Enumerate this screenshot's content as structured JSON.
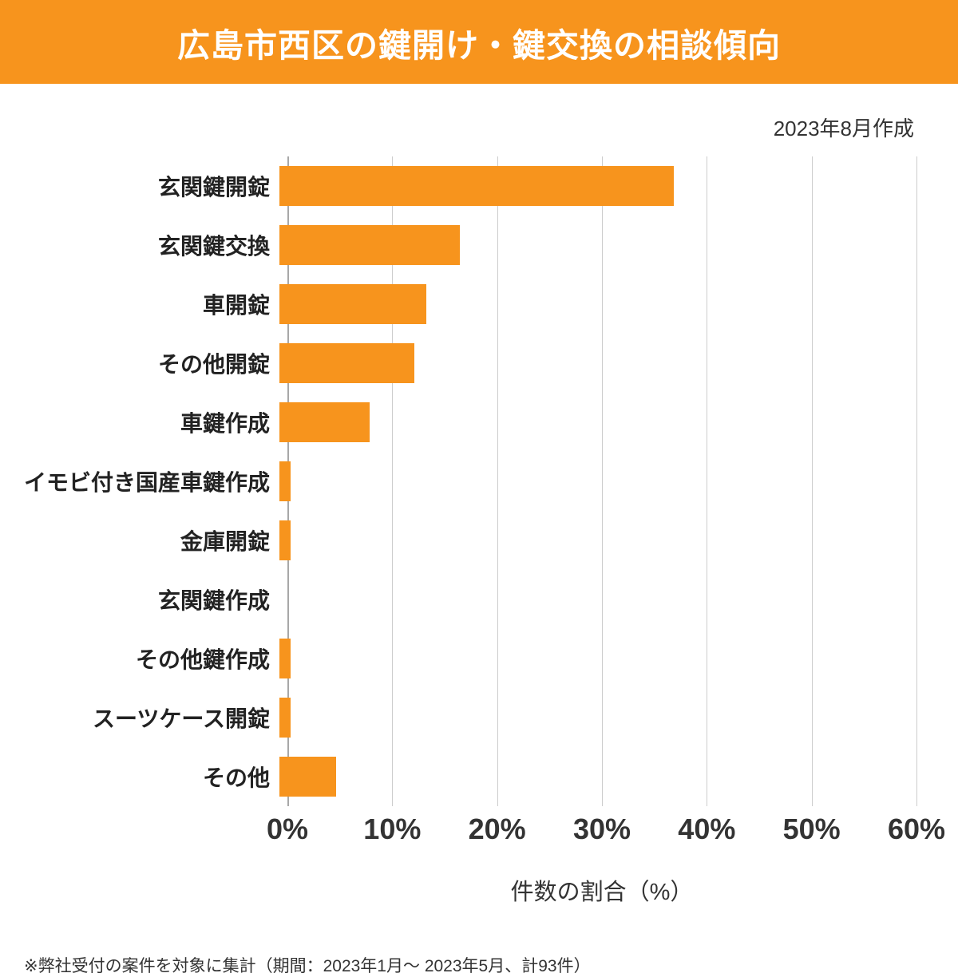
{
  "colors": {
    "accent": "#F7941D",
    "gridline": "#cccccc",
    "axis_line": "#a8a8a8"
  },
  "header": {
    "title": "広島市西区の鍵開け・鍵交換の相談傾向",
    "date_note": "2023年8月作成"
  },
  "chart_data": {
    "type": "bar",
    "orientation": "horizontal",
    "title": "広島市西区の鍵開け・鍵交換の相談傾向",
    "categories": [
      "玄関鍵開錠",
      "玄関鍵交換",
      "車開錠",
      "その他開錠",
      "車鍵作成",
      "イモビ付き国産車鍵作成",
      "金庫開錠",
      "玄関鍵作成",
      "その他鍵作成",
      "スーツケース開錠",
      "その他"
    ],
    "values": [
      37.6,
      17.2,
      14.0,
      12.9,
      8.6,
      1.1,
      1.1,
      0,
      1.1,
      1.1,
      5.4
    ],
    "xlabel": "件数の割合（%）",
    "ylabel": "",
    "xlim": [
      0,
      60
    ],
    "ticks": [
      0,
      10,
      20,
      30,
      40,
      50,
      60
    ],
    "tick_labels": [
      "0%",
      "10%",
      "20%",
      "30%",
      "40%",
      "50%",
      "60%"
    ],
    "bar_color": "#F7941D",
    "grid": true,
    "legend": false
  },
  "footer": {
    "note": "※弊社受付の案件を対象に集計（期間：2023年1月～ 2023年5月、計93件）"
  }
}
